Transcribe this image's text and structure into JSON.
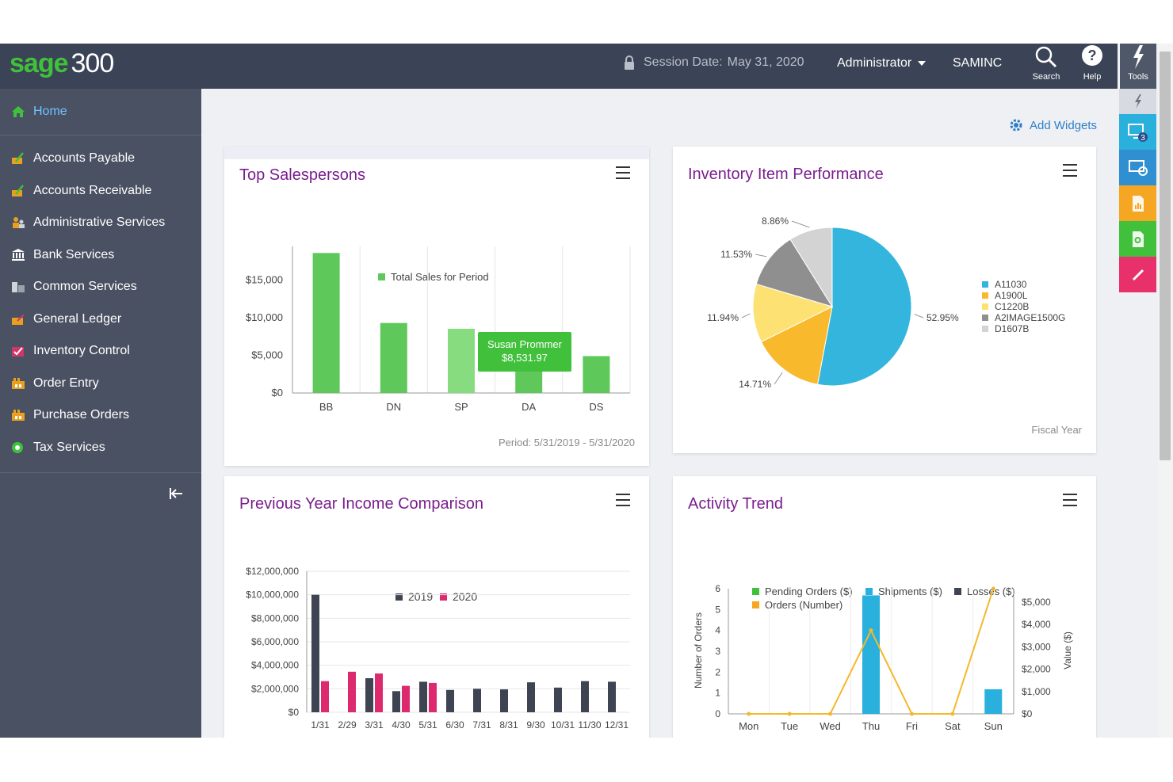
{
  "header": {
    "logo_sage": "sage",
    "logo_num": "300",
    "session_label": "Session Date:",
    "session_date": "May 31, 2020",
    "user": "Administrator",
    "company": "SAMINC",
    "search_label": "Search",
    "help_label": "Help",
    "tools_label": "Tools"
  },
  "sidebar": {
    "home": "Home",
    "items": [
      {
        "label": "Accounts Payable",
        "icon": "ledger-pencil-icon",
        "color": "#e8a01e"
      },
      {
        "label": "Accounts Receivable",
        "icon": "ledger-pencil-icon",
        "color": "#e8a01e"
      },
      {
        "label": "Administrative Services",
        "icon": "people-icon",
        "color": "#e8a01e"
      },
      {
        "label": "Bank Services",
        "icon": "bank-icon",
        "color": "#ffffff"
      },
      {
        "label": "Common Services",
        "icon": "buildings-icon",
        "color": "#cfd3da"
      },
      {
        "label": "General Ledger",
        "icon": "ledger-icon",
        "color": "#e8a01e"
      },
      {
        "label": "Inventory Control",
        "icon": "checklist-icon",
        "color": "#d2356a"
      },
      {
        "label": "Order Entry",
        "icon": "factory-icon",
        "color": "#e8a01e"
      },
      {
        "label": "Purchase Orders",
        "icon": "factory-icon",
        "color": "#e8a01e"
      },
      {
        "label": "Tax Services",
        "icon": "globe-icon",
        "color": "#41c13b"
      }
    ]
  },
  "content": {
    "add_widgets": "Add Widgets"
  },
  "rail": {
    "badge": "3",
    "colors": [
      "#2ab0dc",
      "#2f8fd0",
      "#f5a623",
      "#41c13b",
      "#e8306a"
    ]
  },
  "widgets": {
    "salespersons": {
      "title": "Top Salespersons",
      "period": "Period: 5/31/2019 - 5/31/2020",
      "tooltip_name": "Susan Prommer",
      "tooltip_value": "$8,531.97"
    },
    "inventory": {
      "title": "Inventory Item Performance",
      "footer": "Fiscal Year"
    },
    "income": {
      "title": "Previous Year Income Comparison"
    },
    "activity": {
      "title": "Activity Trend"
    }
  },
  "chart_data": [
    {
      "type": "bar",
      "legend": [
        "Total Sales for Period"
      ],
      "categories": [
        "BB",
        "DN",
        "SP",
        "DA",
        "DS"
      ],
      "series": [
        {
          "name": "Total Sales for Period",
          "values": [
            18600,
            9300,
            8531.97,
            3000,
            4900
          ],
          "color": "#5ec95a"
        }
      ],
      "yticks": [
        "$0",
        "$5,000",
        "$10,000",
        "$15,000"
      ],
      "ylim": [
        0,
        20000
      ]
    },
    {
      "type": "pie",
      "labels": [
        "A11030",
        "A1900L",
        "C1220B",
        "A2IMAGE1500G",
        "D1607B"
      ],
      "values": [
        52.95,
        14.71,
        11.94,
        11.53,
        8.86
      ],
      "value_labels": [
        "52.95%",
        "14.71%",
        "11.94%",
        "11.53%",
        "8.86%"
      ],
      "colors": [
        "#33b5dd",
        "#f9b92d",
        "#fde173",
        "#8f8f8f",
        "#d3d3d3"
      ]
    },
    {
      "type": "bar",
      "legend": [
        "2019",
        "2020"
      ],
      "categories": [
        "1/31",
        "2/29",
        "3/31",
        "4/30",
        "5/31",
        "6/30",
        "7/31",
        "8/31",
        "9/30",
        "10/31",
        "11/30",
        "12/31"
      ],
      "series": [
        {
          "name": "2019",
          "values": [
            10000000,
            0,
            2900000,
            1800000,
            2600000,
            1900000,
            2000000,
            1950000,
            2550000,
            2100000,
            2650000,
            2600000
          ],
          "color": "#3f4452"
        },
        {
          "name": "2020",
          "values": [
            2650000,
            3450000,
            3300000,
            2250000,
            2500000,
            0,
            0,
            0,
            0,
            0,
            0,
            0
          ],
          "color": "#dd2a6f"
        }
      ],
      "yticks": [
        "$0",
        "$2,000,000",
        "$4,000,000",
        "$6,000,000",
        "$8,000,000",
        "$10,000,000",
        "$12,000,000"
      ],
      "ylim": [
        0,
        12000000
      ]
    },
    {
      "type": "bar",
      "legend": [
        "Pending Orders ($)",
        "Shipments ($)",
        "Losses ($)",
        "Orders (Number)"
      ],
      "legend_colors": [
        "#41c13b",
        "#2ab0dc",
        "#3f4452",
        "#f5a623"
      ],
      "categories": [
        "Mon",
        "Tue",
        "Wed",
        "Thu",
        "Fri",
        "Sat",
        "Sun"
      ],
      "series": [
        {
          "name": "Shipments ($)",
          "values": [
            0,
            0,
            0,
            5300,
            0,
            0,
            1100
          ],
          "color": "#2ab0dc",
          "axis": "right"
        },
        {
          "name": "Orders (Number)",
          "values": [
            0,
            0,
            0,
            4,
            0,
            0,
            6
          ],
          "color": "#f5b82b",
          "axis": "left",
          "type": "line"
        }
      ],
      "ylabel_left": "Number of Orders",
      "ylabel_right": "Value ($)",
      "yticks_left": [
        "0",
        "1",
        "2",
        "3",
        "4",
        "5",
        "6"
      ],
      "yticks_right": [
        "$0",
        "$1,000",
        "$2,000",
        "$3,000",
        "$4,000",
        "$5,000"
      ],
      "ylim_left": [
        0,
        6
      ],
      "ylim_right": [
        0,
        5600
      ]
    }
  ]
}
